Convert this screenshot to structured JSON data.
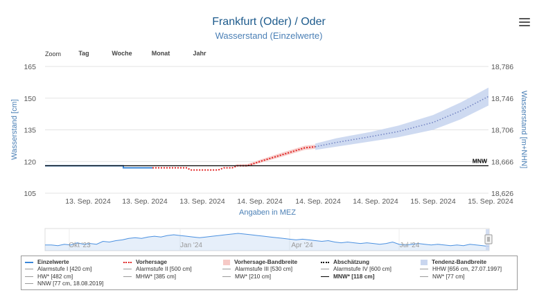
{
  "header": {
    "title": "Frankfurt (Oder) / Oder",
    "subtitle": "Wasserstand (Einzelwerte)"
  },
  "zoom": {
    "label": "Zoom",
    "buttons": [
      "Tag",
      "Woche",
      "Monat",
      "Jahr"
    ]
  },
  "colors": {
    "title": "#1c5a8c",
    "measured": "#3a86d8",
    "forecast": "#e02424",
    "forecast_band": "#f6c9c6",
    "estimate": "#000000",
    "trend_band": "#c9d6ef",
    "trend_line": "#6e7fc0",
    "mnw": "#000000",
    "axis_label": "#4a7fb5"
  },
  "chart_data": {
    "type": "line",
    "title": "Frankfurt (Oder) / Oder",
    "subtitle": "Wasserstand (Einzelwerte)",
    "xlabel": "Angaben in MEZ",
    "ylabel": "Wasserstand [cm]",
    "ylabel_right": "Wasserstand [m+NHN]",
    "x_ticks": [
      "13. Sep. 2024",
      "13. Sep. 2024",
      "13. Sep. 2024",
      "14. Sep. 2024",
      "14. Sep. 2024",
      "14. Sep. 2024",
      "15. Sep. 2024",
      "15. Sep. 2024"
    ],
    "y_ticks_left": [
      105,
      120,
      135,
      150,
      165
    ],
    "y_ticks_right": [
      "18,626",
      "18,666",
      "18,706",
      "18,746",
      "18,786"
    ],
    "ylim": [
      105,
      165
    ],
    "grid": true,
    "series": [
      {
        "name": "Einzelwerte",
        "style": "solid",
        "points": [
          [
            0,
            118
          ],
          [
            113,
            118
          ],
          [
            113,
            117
          ],
          [
            155,
            117
          ]
        ]
      },
      {
        "name": "Vorhersage",
        "style": "dotted",
        "points": [
          [
            155,
            117
          ],
          [
            205,
            117
          ],
          [
            210,
            116
          ],
          [
            250,
            116
          ],
          [
            258,
            117
          ],
          [
            270,
            117
          ],
          [
            278,
            118
          ],
          [
            292,
            118
          ],
          [
            310,
            120
          ],
          [
            340,
            123
          ],
          [
            375,
            126.5
          ],
          [
            390,
            127
          ]
        ]
      },
      {
        "name": "Vorhersage-Bandbreite",
        "style": "band",
        "points": [
          [
            275,
            117.8,
            118.6
          ],
          [
            292,
            117.6,
            118.8
          ],
          [
            310,
            119.3,
            120.8
          ],
          [
            340,
            122.1,
            124
          ],
          [
            375,
            125.5,
            127.5
          ],
          [
            390,
            126,
            128
          ]
        ]
      },
      {
        "name": "Tendenz-Bandbreite",
        "style": "band",
        "points": [
          [
            390,
            125.5,
            128.5
          ],
          [
            420,
            127,
            131
          ],
          [
            470,
            129.5,
            134
          ],
          [
            510,
            131.5,
            137
          ],
          [
            560,
            135,
            142
          ],
          [
            600,
            140,
            148
          ],
          [
            640,
            146.5,
            155
          ]
        ]
      },
      {
        "name": "Tendenz",
        "style": "dotted",
        "points": [
          [
            390,
            127
          ],
          [
            420,
            129
          ],
          [
            470,
            131.8
          ],
          [
            510,
            134.2
          ],
          [
            560,
            138.5
          ],
          [
            600,
            144
          ],
          [
            640,
            150.8
          ]
        ]
      },
      {
        "name": "MNW* [118 cm]",
        "style": "solid",
        "label": "MNW",
        "value": 118
      }
    ]
  },
  "navigator": {
    "labels": [
      "Okt '23",
      "Jan '24",
      "Apr '24",
      "Jul '24"
    ],
    "values": [
      5,
      5,
      4,
      6,
      5,
      8,
      6,
      7,
      6,
      10,
      9,
      11,
      12,
      14,
      15,
      14,
      16,
      17,
      16,
      18,
      19,
      18,
      17,
      16,
      15,
      16,
      17,
      18,
      19,
      20,
      21,
      20,
      19,
      18,
      17,
      16,
      15,
      14,
      13,
      12,
      13,
      12,
      11,
      10,
      11,
      9,
      8,
      9,
      8,
      7,
      8,
      7,
      6,
      7,
      9,
      6,
      5,
      6,
      7,
      6,
      5,
      6,
      5,
      4,
      5,
      4,
      6,
      5,
      4,
      3
    ]
  },
  "legend": {
    "items": [
      {
        "label": "Einzelwerte",
        "bold": true
      },
      {
        "label": "Vorhersage",
        "bold": true
      },
      {
        "label": "Vorhersage-Bandbreite",
        "bold": true
      },
      {
        "label": "Abschätzung",
        "bold": true
      },
      {
        "label": "Tendenz-Bandbreite",
        "bold": true
      },
      {
        "label": "Alarmstufe I [420 cm]",
        "bold": false
      },
      {
        "label": "Alarmstufe II [500 cm]",
        "bold": false
      },
      {
        "label": "Alarmstufe III [530 cm]",
        "bold": false
      },
      {
        "label": "Alarmstufe IV [600 cm]",
        "bold": false
      },
      {
        "label": "HHW [656 cm, 27.07.1997]",
        "bold": false
      },
      {
        "label": "HW* [482 cm]",
        "bold": false
      },
      {
        "label": "MHW* [385 cm]",
        "bold": false
      },
      {
        "label": "MW* [210 cm]",
        "bold": false
      },
      {
        "label": "MNW* [118 cm]",
        "bold": true
      },
      {
        "label": "NW* [77 cm]",
        "bold": false
      },
      {
        "label": "NNW [77 cm, 18.08.2019]",
        "bold": false
      }
    ]
  }
}
